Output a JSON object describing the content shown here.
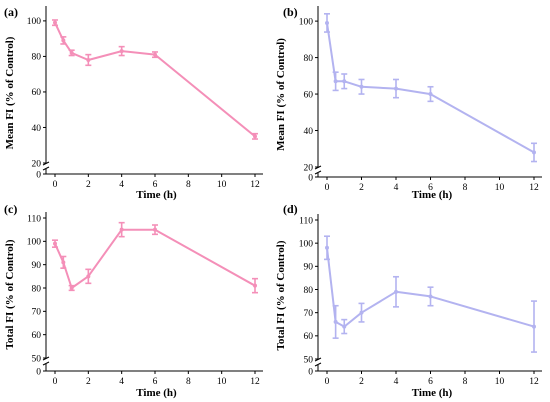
{
  "figure": {
    "panel_labels": [
      "(a)",
      "(b)",
      "(c)",
      "(d)"
    ]
  },
  "chart_data": [
    {
      "panel": "(a)",
      "type": "line",
      "color": "#f48fb8",
      "xlabel": "Time (h)",
      "ylabel": "Mean FI (% of Control)",
      "xlim": [
        0,
        12
      ],
      "ylim": [
        20,
        105
      ],
      "axis_break": true,
      "x_ticks": [
        0,
        2,
        4,
        6,
        8,
        10,
        12
      ],
      "y_ticks": [
        20,
        40,
        60,
        80,
        100
      ],
      "extra_y_tick": 0,
      "x": [
        0,
        0.5,
        1,
        2,
        4,
        6,
        12
      ],
      "y": [
        99,
        89,
        82,
        78,
        83,
        81,
        35
      ],
      "err": [
        1.5,
        2,
        1.5,
        3,
        2.5,
        1.5,
        1.5
      ]
    },
    {
      "panel": "(b)",
      "type": "line",
      "color": "#b3b3f0",
      "xlabel": "Time (h)",
      "ylabel": "Mean FI (% of Control)",
      "xlim": [
        0,
        12
      ],
      "ylim": [
        20,
        105
      ],
      "axis_break": true,
      "x_ticks": [
        0,
        2,
        4,
        6,
        8,
        10,
        12
      ],
      "y_ticks": [
        20,
        40,
        60,
        80,
        100
      ],
      "extra_y_tick": 0,
      "x": [
        0,
        0.5,
        1,
        2,
        4,
        6,
        12
      ],
      "y": [
        99,
        67,
        67,
        64,
        63,
        60,
        28
      ],
      "err": [
        5,
        5,
        4,
        4,
        5,
        4,
        5
      ]
    },
    {
      "panel": "(c)",
      "type": "line",
      "color": "#f48fb8",
      "xlabel": "Time (h)",
      "ylabel": "Total FI (% of Control)",
      "xlim": [
        0,
        12
      ],
      "ylim": [
        50,
        110
      ],
      "axis_break": true,
      "x_ticks": [
        0,
        2,
        4,
        6,
        8,
        10,
        12
      ],
      "y_ticks": [
        50,
        60,
        70,
        80,
        90,
        100,
        110
      ],
      "extra_y_tick": 0,
      "x": [
        0,
        0.5,
        1,
        2,
        4,
        6,
        12
      ],
      "y": [
        99,
        91,
        80,
        85,
        105,
        105,
        81
      ],
      "err": [
        1.5,
        2.5,
        1,
        3,
        3,
        2,
        3
      ]
    },
    {
      "panel": "(d)",
      "type": "line",
      "color": "#b3b3f0",
      "xlabel": "Time (h)",
      "ylabel": "Total FI (% of Control)",
      "xlim": [
        0,
        12
      ],
      "ylim": [
        50,
        110
      ],
      "axis_break": true,
      "x_ticks": [
        0,
        2,
        4,
        6,
        8,
        10,
        12
      ],
      "y_ticks": [
        50,
        60,
        70,
        80,
        90,
        100,
        110
      ],
      "extra_y_tick": 0,
      "x": [
        0,
        0.5,
        1,
        2,
        4,
        6,
        12
      ],
      "y": [
        98,
        66,
        64,
        70,
        79,
        77,
        64
      ],
      "err": [
        5,
        7,
        3,
        4,
        6.5,
        4,
        11
      ]
    }
  ]
}
